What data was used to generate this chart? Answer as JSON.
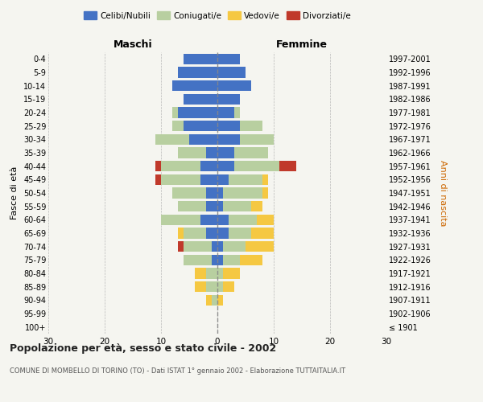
{
  "age_groups": [
    "100+",
    "95-99",
    "90-94",
    "85-89",
    "80-84",
    "75-79",
    "70-74",
    "65-69",
    "60-64",
    "55-59",
    "50-54",
    "45-49",
    "40-44",
    "35-39",
    "30-34",
    "25-29",
    "20-24",
    "15-19",
    "10-14",
    "5-9",
    "0-4"
  ],
  "birth_years": [
    "≤ 1901",
    "1902-1906",
    "1907-1911",
    "1912-1916",
    "1917-1921",
    "1922-1926",
    "1927-1931",
    "1932-1936",
    "1937-1941",
    "1942-1946",
    "1947-1951",
    "1952-1956",
    "1957-1961",
    "1962-1966",
    "1967-1971",
    "1972-1976",
    "1977-1981",
    "1982-1986",
    "1987-1991",
    "1992-1996",
    "1997-2001"
  ],
  "maschi": {
    "celibe": [
      0,
      0,
      0,
      0,
      0,
      1,
      1,
      2,
      3,
      2,
      2,
      3,
      3,
      2,
      5,
      6,
      7,
      6,
      8,
      7,
      6
    ],
    "coniugato": [
      0,
      0,
      1,
      2,
      2,
      5,
      5,
      4,
      7,
      5,
      6,
      7,
      7,
      5,
      6,
      2,
      1,
      0,
      0,
      0,
      0
    ],
    "vedovo": [
      0,
      0,
      1,
      2,
      2,
      0,
      0,
      1,
      0,
      0,
      0,
      0,
      0,
      0,
      0,
      0,
      0,
      0,
      0,
      0,
      0
    ],
    "divorziato": [
      0,
      0,
      0,
      0,
      0,
      0,
      1,
      0,
      0,
      0,
      0,
      1,
      1,
      0,
      0,
      0,
      0,
      0,
      0,
      0,
      0
    ]
  },
  "femmine": {
    "nubile": [
      0,
      0,
      0,
      0,
      0,
      1,
      1,
      2,
      2,
      1,
      1,
      2,
      3,
      3,
      4,
      4,
      3,
      4,
      6,
      5,
      4
    ],
    "coniugata": [
      0,
      0,
      0,
      1,
      1,
      3,
      4,
      4,
      5,
      5,
      7,
      6,
      8,
      6,
      6,
      4,
      1,
      0,
      0,
      0,
      0
    ],
    "vedova": [
      0,
      0,
      1,
      2,
      3,
      4,
      5,
      4,
      3,
      2,
      1,
      1,
      0,
      0,
      0,
      0,
      0,
      0,
      0,
      0,
      0
    ],
    "divorziata": [
      0,
      0,
      0,
      0,
      0,
      0,
      0,
      0,
      0,
      0,
      0,
      0,
      3,
      0,
      0,
      0,
      0,
      0,
      0,
      0,
      0
    ]
  },
  "colors": {
    "celibe": "#4472c4",
    "coniugato": "#b8cfa0",
    "vedovo": "#f5c842",
    "divorziato": "#c0392b"
  },
  "xlim": 30,
  "title": "Popolazione per età, sesso e stato civile - 2002",
  "subtitle": "COMUNE DI MOMBELLO DI TORINO (TO) - Dati ISTAT 1° gennaio 2002 - Elaborazione TUTTAITALIA.IT",
  "ylabel_left": "Fasce di età",
  "ylabel_right": "Anni di nascita",
  "header_left": "Maschi",
  "header_right": "Femmine",
  "legend_labels": [
    "Celibi/Nubili",
    "Coniugati/e",
    "Vedovi/e",
    "Divorziati/e"
  ],
  "legend_colors": [
    "#4472c4",
    "#b8cfa0",
    "#f5c842",
    "#c0392b"
  ],
  "bg_color": "#f5f5f0",
  "bar_height": 0.8
}
